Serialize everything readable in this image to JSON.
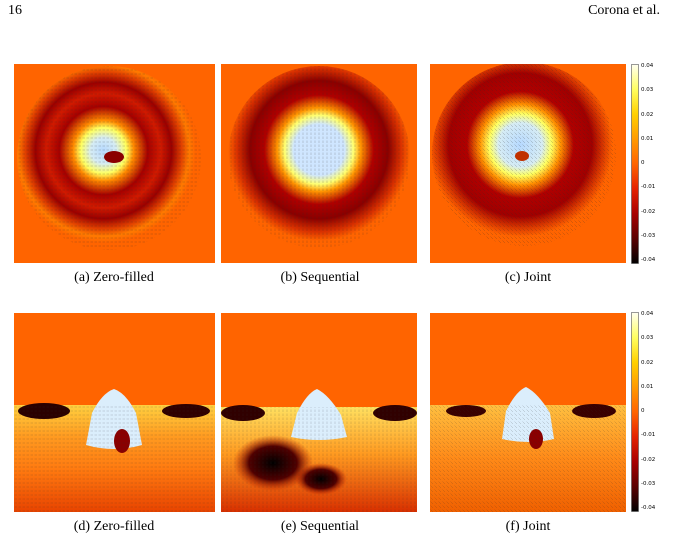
{
  "header": {
    "page_number": "16",
    "running_head": "Corona et al."
  },
  "figures": [
    {
      "id": "a",
      "caption": "(a) Zero-filled"
    },
    {
      "id": "b",
      "caption": "(b) Sequential"
    },
    {
      "id": "c",
      "caption": "(c) Joint"
    },
    {
      "id": "d",
      "caption": "(d) Zero-filled"
    },
    {
      "id": "e",
      "caption": "(e) Sequential"
    },
    {
      "id": "f",
      "caption": "(f) Joint"
    }
  ],
  "colorbar": {
    "ticks": [
      "0.04",
      "0.03",
      "0.02",
      "0.01",
      "0",
      "-0.01",
      "-0.02",
      "-0.03",
      "-0.04"
    ],
    "colors": [
      "#fffff0",
      "#ffff60",
      "#ffd000",
      "#ff9a00",
      "#ff6400",
      "#e52200",
      "#a80000",
      "#5a0000",
      "#000000"
    ]
  }
}
